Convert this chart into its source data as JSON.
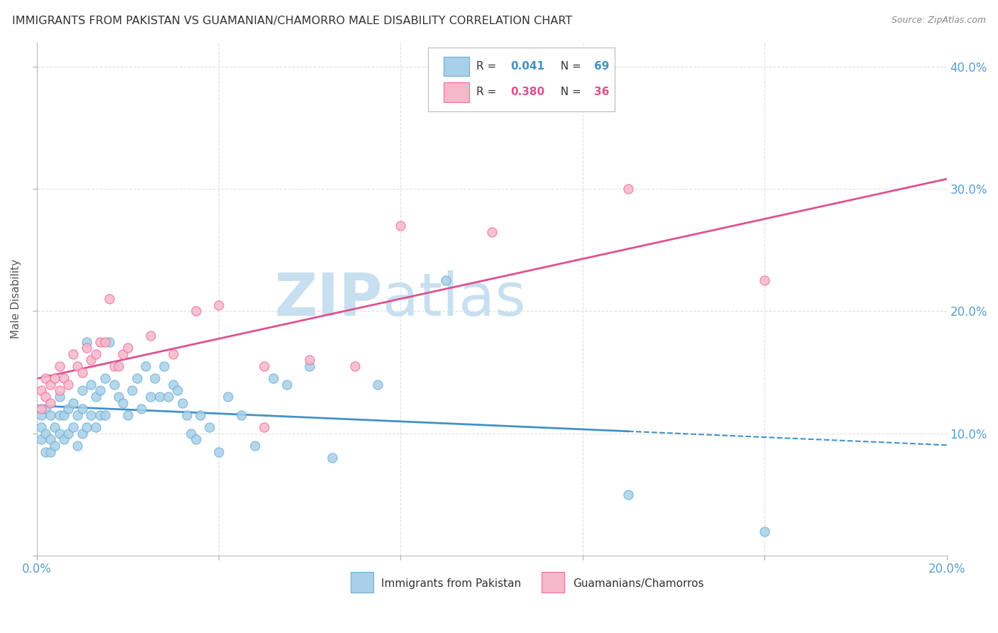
{
  "title": "IMMIGRANTS FROM PAKISTAN VS GUAMANIAN/CHAMORRO MALE DISABILITY CORRELATION CHART",
  "source": "Source: ZipAtlas.com",
  "ylabel": "Male Disability",
  "xlim": [
    0.0,
    0.2
  ],
  "ylim": [
    0.0,
    0.42
  ],
  "xticks": [
    0.0,
    0.04,
    0.08,
    0.12,
    0.16,
    0.2
  ],
  "yticks": [
    0.0,
    0.1,
    0.2,
    0.3,
    0.4
  ],
  "color_blue": "#a8d0e8",
  "color_pink": "#f4b8c8",
  "color_blue_edge": "#6baed6",
  "color_pink_edge": "#f768a1",
  "color_blue_line": "#4292c6",
  "color_pink_line": "#e05090",
  "color_title": "#333333",
  "color_source": "#888888",
  "color_axis": "#5a9fd4",
  "watermark_color": "#c8dff0",
  "blue_scatter_x": [
    0.001,
    0.001,
    0.001,
    0.002,
    0.002,
    0.002,
    0.003,
    0.003,
    0.003,
    0.004,
    0.004,
    0.005,
    0.005,
    0.005,
    0.006,
    0.006,
    0.007,
    0.007,
    0.008,
    0.008,
    0.009,
    0.009,
    0.01,
    0.01,
    0.01,
    0.011,
    0.011,
    0.012,
    0.012,
    0.013,
    0.013,
    0.014,
    0.014,
    0.015,
    0.015,
    0.016,
    0.017,
    0.018,
    0.019,
    0.02,
    0.021,
    0.022,
    0.023,
    0.024,
    0.025,
    0.026,
    0.027,
    0.028,
    0.029,
    0.03,
    0.031,
    0.032,
    0.033,
    0.034,
    0.035,
    0.036,
    0.038,
    0.04,
    0.042,
    0.045,
    0.048,
    0.052,
    0.055,
    0.06,
    0.065,
    0.075,
    0.09,
    0.13,
    0.16
  ],
  "blue_scatter_y": [
    0.115,
    0.105,
    0.095,
    0.12,
    0.1,
    0.085,
    0.115,
    0.095,
    0.085,
    0.105,
    0.09,
    0.13,
    0.115,
    0.1,
    0.115,
    0.095,
    0.12,
    0.1,
    0.125,
    0.105,
    0.115,
    0.09,
    0.135,
    0.12,
    0.1,
    0.175,
    0.105,
    0.14,
    0.115,
    0.13,
    0.105,
    0.135,
    0.115,
    0.145,
    0.115,
    0.175,
    0.14,
    0.13,
    0.125,
    0.115,
    0.135,
    0.145,
    0.12,
    0.155,
    0.13,
    0.145,
    0.13,
    0.155,
    0.13,
    0.14,
    0.135,
    0.125,
    0.115,
    0.1,
    0.095,
    0.115,
    0.105,
    0.085,
    0.13,
    0.115,
    0.09,
    0.145,
    0.14,
    0.155,
    0.08,
    0.14,
    0.225,
    0.05,
    0.02
  ],
  "pink_scatter_x": [
    0.001,
    0.001,
    0.002,
    0.002,
    0.003,
    0.003,
    0.004,
    0.005,
    0.005,
    0.006,
    0.007,
    0.008,
    0.009,
    0.01,
    0.011,
    0.012,
    0.013,
    0.014,
    0.015,
    0.016,
    0.017,
    0.018,
    0.019,
    0.02,
    0.025,
    0.03,
    0.035,
    0.04,
    0.05,
    0.06,
    0.07,
    0.08,
    0.13,
    0.16,
    0.05,
    0.1
  ],
  "pink_scatter_y": [
    0.135,
    0.12,
    0.145,
    0.13,
    0.14,
    0.125,
    0.145,
    0.155,
    0.135,
    0.145,
    0.14,
    0.165,
    0.155,
    0.15,
    0.17,
    0.16,
    0.165,
    0.175,
    0.175,
    0.21,
    0.155,
    0.155,
    0.165,
    0.17,
    0.18,
    0.165,
    0.2,
    0.205,
    0.155,
    0.16,
    0.155,
    0.27,
    0.3,
    0.225,
    0.105,
    0.265
  ]
}
